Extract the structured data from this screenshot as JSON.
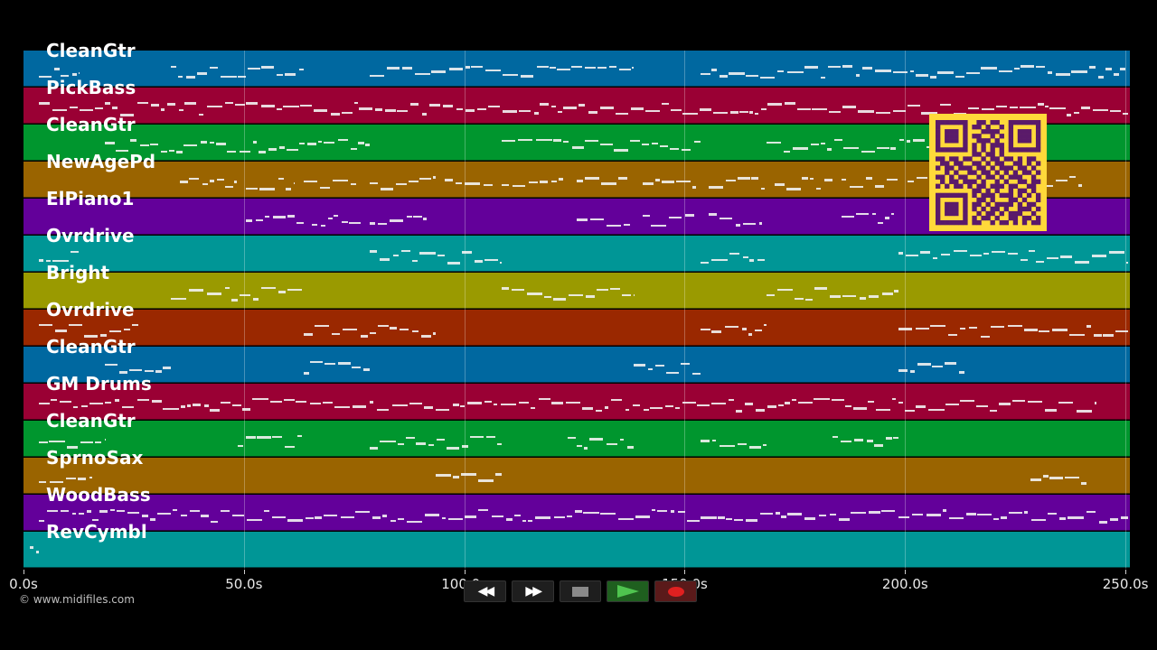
{
  "tracks": [
    {
      "name": "CleanGtr",
      "color": "#0068a0"
    },
    {
      "name": "PickBass",
      "color": "#9a0034"
    },
    {
      "name": "CleanGtr",
      "color": "#00962e"
    },
    {
      "name": "NewAgePd",
      "color": "#9a6400"
    },
    {
      "name": "ElPiano1",
      "color": "#63009a"
    },
    {
      "name": "Ovrdrive",
      "color": "#009696"
    },
    {
      "name": "Bright",
      "color": "#9a9a00"
    },
    {
      "name": "Ovrdrive",
      "color": "#9a2800"
    },
    {
      "name": "CleanGtr",
      "color": "#0068a0"
    },
    {
      "name": "GM Drums",
      "color": "#9a0034"
    },
    {
      "name": "CleanGtr",
      "color": "#00962e"
    },
    {
      "name": "SprnoSax",
      "color": "#9a6400"
    },
    {
      "name": "WoodBass",
      "color": "#63009a"
    },
    {
      "name": "RevCymbl",
      "color": "#009696"
    }
  ],
  "timeline": {
    "max_seconds": 251,
    "ticks": [
      {
        "seconds": 0,
        "label": "0.0s"
      },
      {
        "seconds": 50,
        "label": "50.0s"
      },
      {
        "seconds": 100,
        "label": "100.0s"
      },
      {
        "seconds": 150,
        "label": "150.0s"
      },
      {
        "seconds": 200,
        "label": "200.0s"
      },
      {
        "seconds": 250,
        "label": "250.0s"
      }
    ]
  },
  "note_segments": [
    [
      [
        3.5,
        12.5
      ],
      [
        33.5,
        63.5
      ],
      [
        78.5,
        138.5
      ],
      [
        153.5,
        250.5
      ]
    ],
    [
      [
        3.5,
        250.5
      ]
    ],
    [
      [
        18.5,
        78.5
      ],
      [
        108.5,
        153.5
      ],
      [
        168.5,
        213.5
      ]
    ],
    [
      [
        35.5,
        48.5
      ],
      [
        50.5,
        61.5
      ],
      [
        63.5,
        75.5
      ],
      [
        78.5,
        93.5
      ],
      [
        95.5,
        106.5
      ],
      [
        108.5,
        122.5
      ],
      [
        125.5,
        137.5
      ],
      [
        140.5,
        152.5
      ],
      [
        155.5,
        168.5
      ],
      [
        170.5,
        183.5
      ],
      [
        185.5,
        198.5
      ],
      [
        200.5,
        213.5
      ],
      [
        215.5,
        228.5
      ],
      [
        230.5,
        240.5
      ]
    ],
    [
      [
        50.5,
        63.5
      ],
      [
        65.5,
        76.5
      ],
      [
        78.5,
        91.5
      ],
      [
        125.5,
        137.5
      ],
      [
        140.5,
        152.5
      ],
      [
        155.5,
        167.5
      ],
      [
        185.5,
        197.5
      ]
    ],
    [
      [
        3.5,
        12.5
      ],
      [
        78.5,
        108.5
      ],
      [
        153.5,
        168.5
      ],
      [
        198.5,
        250.5
      ]
    ],
    [
      [
        33.5,
        63.5
      ],
      [
        108.5,
        138.5
      ],
      [
        168.5,
        198.5
      ]
    ],
    [
      [
        3.5,
        26.5
      ],
      [
        63.5,
        93.5
      ],
      [
        153.5,
        168.5
      ],
      [
        198.5,
        250.5
      ]
    ],
    [
      [
        18.5,
        33.5
      ],
      [
        63.5,
        78.5
      ],
      [
        138.5,
        153.5
      ],
      [
        198.5,
        213.5
      ]
    ],
    [
      [
        3.5,
        243.5
      ]
    ],
    [
      [
        3.5,
        18.5
      ],
      [
        48.5,
        63.5
      ],
      [
        78.5,
        108.5
      ],
      [
        123.5,
        138.5
      ],
      [
        153.5,
        168.5
      ],
      [
        183.5,
        198.5
      ]
    ],
    [
      [
        3.5,
        15.5
      ],
      [
        93.5,
        108.5
      ],
      [
        228.5,
        241.5
      ]
    ],
    [
      [
        3.5,
        250.5
      ]
    ],
    [
      [
        1.5,
        3.5
      ]
    ]
  ],
  "qr_pattern": [
    "11111110011011001111111",
    "10000010110100101000001",
    "10111010001111001011101",
    "10111010110010101011101",
    "10111010011101001011101",
    "10000010101011101000001",
    "11111110101010101111111",
    "00000000110110100000000",
    "11011011001011011010110",
    "01101100110101100110101",
    "10110111011010111011010",
    "00101001101101010101101",
    "11010110010110101110010",
    "01011011101001010011011",
    "10101101011011101100110",
    "00000000110101001011010",
    "11111110101110111010101",
    "10000010011010001101001",
    "10111010110101111010110",
    "10111010101011010011101",
    "10111010010110101110010",
    "10000010101101001101101",
    "11111110110010110101011"
  ],
  "copyright": "© www.midifiles.com",
  "transport": {
    "rewind": "rewind-icon",
    "forward": "fast-forward-icon",
    "stop": "stop-icon",
    "play": "play-icon",
    "record": "record-icon",
    "rewind_glyph": "◀◀",
    "forward_glyph": "▶▶"
  }
}
